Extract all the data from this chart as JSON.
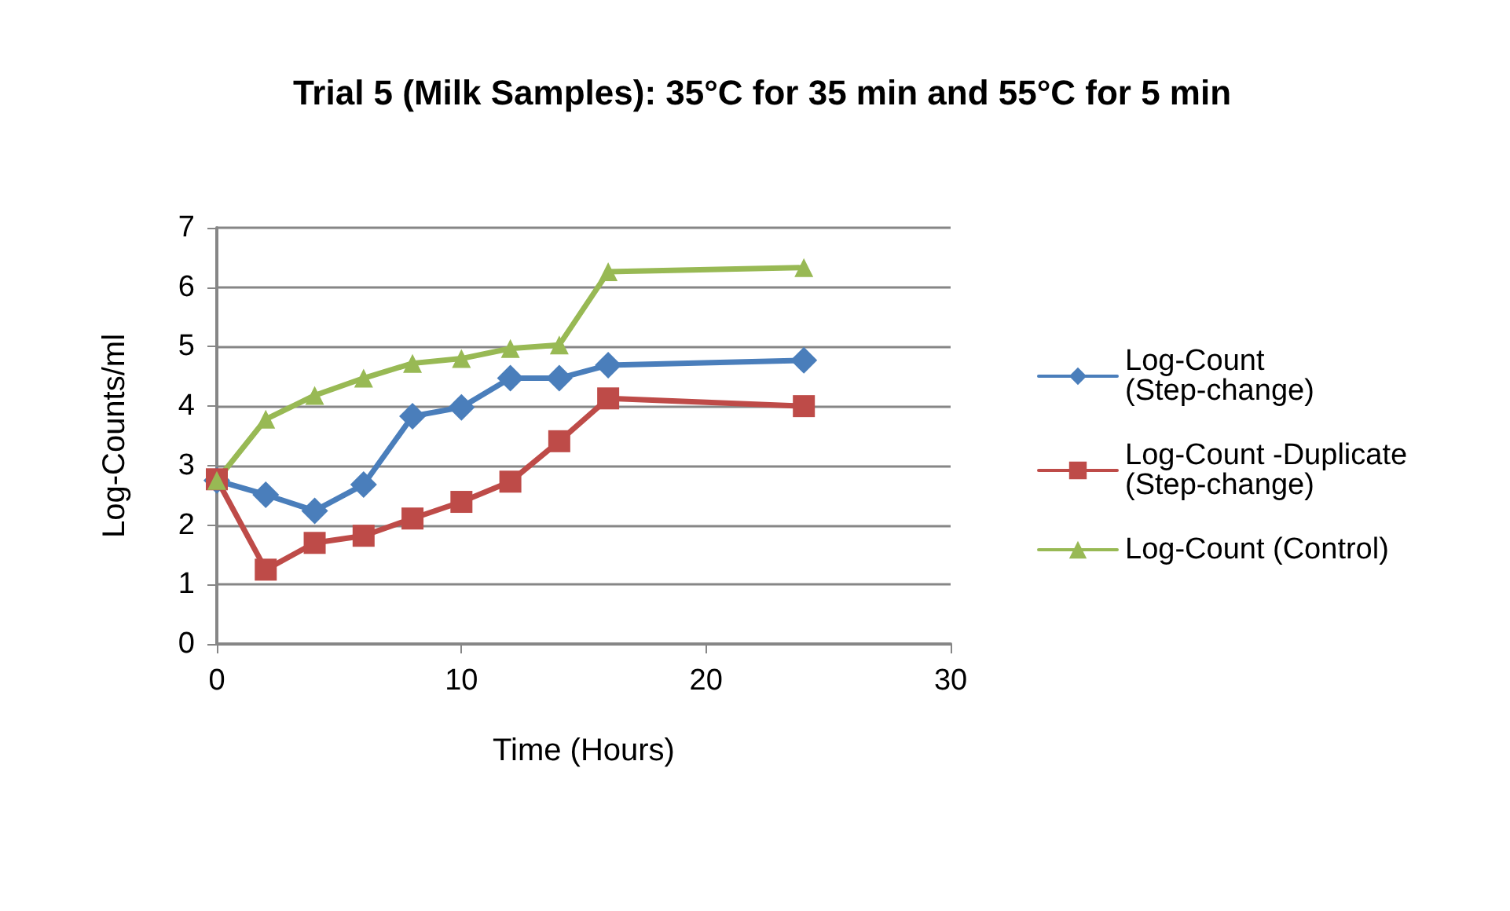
{
  "chart_data": {
    "type": "line",
    "title": "Trial 5 (Milk Samples): 35°C for 35 min and 55°C for 5 min",
    "xlabel": "Time (Hours)",
    "ylabel": "Log-Counts/ml",
    "x": [
      0,
      2,
      4,
      6,
      8,
      10,
      12,
      14,
      16,
      24
    ],
    "series": [
      {
        "name": "Log-Count (Step-change)",
        "color": "#4a7ebb",
        "marker": "diamond",
        "values": [
          2.75,
          2.51,
          2.24,
          2.68,
          3.83,
          3.98,
          4.47,
          4.47,
          4.69,
          4.77
        ]
      },
      {
        "name": "Log-Count -Duplicate (Step-change)",
        "color": "#be4b48",
        "marker": "square",
        "values": [
          2.77,
          1.25,
          1.7,
          1.82,
          2.11,
          2.39,
          2.73,
          3.41,
          4.13,
          4.0
        ]
      },
      {
        "name": "Log-Count (Control)",
        "color": "#98b954",
        "marker": "triangle",
        "values": [
          2.75,
          3.78,
          4.18,
          4.47,
          4.72,
          4.8,
          4.97,
          5.03,
          6.26,
          6.33
        ]
      }
    ],
    "xlim": [
      0,
      30
    ],
    "xticks": [
      0,
      10,
      20,
      30
    ],
    "ylim": [
      0,
      7
    ],
    "yticks": [
      0,
      1,
      2,
      3,
      4,
      5,
      6,
      7
    ],
    "grid": "y",
    "legend": "right",
    "line_style": "solid"
  }
}
